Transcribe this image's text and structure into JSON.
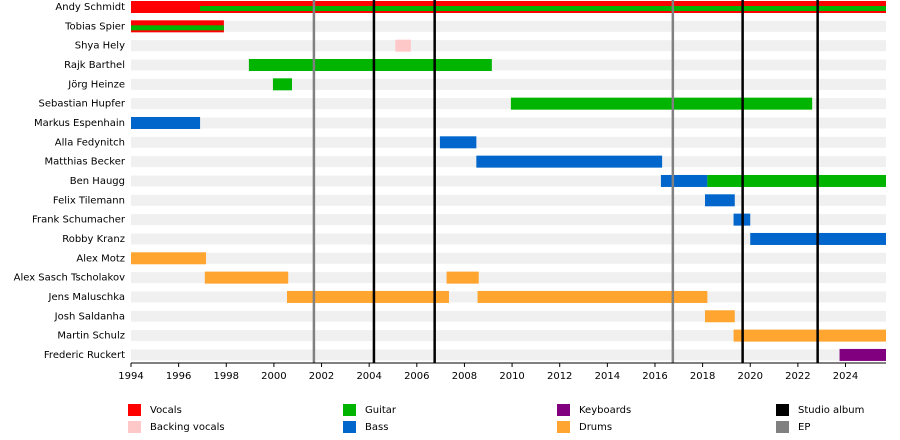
{
  "chart_data": {
    "type": "timeline",
    "xlim": [
      1994,
      2025.7
    ],
    "xticks": [
      1994,
      1996,
      1998,
      2000,
      2002,
      2004,
      2006,
      2008,
      2010,
      2012,
      2014,
      2016,
      2018,
      2020,
      2022,
      2024
    ],
    "roles": [
      {
        "name": "Vocals",
        "color": "#ff0000"
      },
      {
        "name": "Backing vocals",
        "color": "#ffc8c8"
      },
      {
        "name": "Guitar",
        "color": "#00b400"
      },
      {
        "name": "Bass",
        "color": "#0066cc"
      },
      {
        "name": "Keyboards",
        "color": "#800080"
      },
      {
        "name": "Drums",
        "color": "#ffa530"
      }
    ],
    "events": [
      {
        "name": "Studio album",
        "color": "#000000",
        "x": [
          2004.2,
          2006.75,
          2019.68,
          2022.83
        ]
      },
      {
        "name": "EP",
        "color": "#808080",
        "x": [
          2001.68,
          2016.75
        ]
      }
    ],
    "members": [
      {
        "name": "Andy Schmidt",
        "spans": [
          {
            "role": "Vocals",
            "start": 1994,
            "end": 2025.7
          },
          {
            "role": "Guitar",
            "start": 1996.9,
            "end": 2025.7
          }
        ]
      },
      {
        "name": "Tobias Spier",
        "spans": [
          {
            "role": "Vocals",
            "start": 1994,
            "end": 1997.9
          },
          {
            "role": "Guitar",
            "start": 1994,
            "end": 1997.9
          }
        ]
      },
      {
        "name": "Shya Hely",
        "spans": [
          {
            "role": "Backing vocals",
            "start": 2005.1,
            "end": 2005.75
          }
        ]
      },
      {
        "name": "Rajk Barthel",
        "spans": [
          {
            "role": "Guitar",
            "start": 1998.95,
            "end": 2009.15
          }
        ]
      },
      {
        "name": "Jörg Heinze",
        "spans": [
          {
            "role": "Guitar",
            "start": 1999.96,
            "end": 2000.76
          }
        ]
      },
      {
        "name": "Sebastian Hupfer",
        "spans": [
          {
            "role": "Guitar",
            "start": 2009.95,
            "end": 2022.6
          }
        ]
      },
      {
        "name": "Markus Espenhain",
        "spans": [
          {
            "role": "Bass",
            "start": 1994,
            "end": 1996.9
          }
        ]
      },
      {
        "name": "Alla Fedynitch",
        "spans": [
          {
            "role": "Bass",
            "start": 2006.97,
            "end": 2008.5
          }
        ]
      },
      {
        "name": "Matthias Becker",
        "spans": [
          {
            "role": "Bass",
            "start": 2008.5,
            "end": 2016.3
          }
        ]
      },
      {
        "name": "Ben Haugg",
        "spans": [
          {
            "role": "Bass",
            "start": 2016.25,
            "end": 2018.2
          },
          {
            "role": "Guitar",
            "start": 2018.2,
            "end": 2025.7
          }
        ]
      },
      {
        "name": "Felix Tilemann",
        "spans": [
          {
            "role": "Bass",
            "start": 2018.1,
            "end": 2019.35
          }
        ]
      },
      {
        "name": "Frank Schumacher",
        "spans": [
          {
            "role": "Bass",
            "start": 2019.3,
            "end": 2020
          }
        ]
      },
      {
        "name": "Robby Kranz",
        "spans": [
          {
            "role": "Bass",
            "start": 2020,
            "end": 2025.7
          }
        ]
      },
      {
        "name": "Alex Motz",
        "spans": [
          {
            "role": "Drums",
            "start": 1994,
            "end": 1997.15
          }
        ]
      },
      {
        "name": "Alex Sasch Tscholakov",
        "spans": [
          {
            "role": "Drums",
            "start": 1997.1,
            "end": 2000.6
          },
          {
            "role": "Drums",
            "start": 2007.25,
            "end": 2008.6
          }
        ]
      },
      {
        "name": "Jens Maluschka",
        "spans": [
          {
            "role": "Drums",
            "start": 2000.55,
            "end": 2007.35
          },
          {
            "role": "Drums",
            "start": 2008.55,
            "end": 2018.2
          }
        ]
      },
      {
        "name": "Josh Saldanha",
        "spans": [
          {
            "role": "Drums",
            "start": 2018.1,
            "end": 2019.35
          }
        ]
      },
      {
        "name": "Martin Schulz",
        "spans": [
          {
            "role": "Drums",
            "start": 2019.3,
            "end": 2025.7
          }
        ]
      },
      {
        "name": "Frederic Ruckert",
        "spans": [
          {
            "role": "Keyboards",
            "start": 2023.75,
            "end": 2025.7
          }
        ]
      }
    ]
  }
}
